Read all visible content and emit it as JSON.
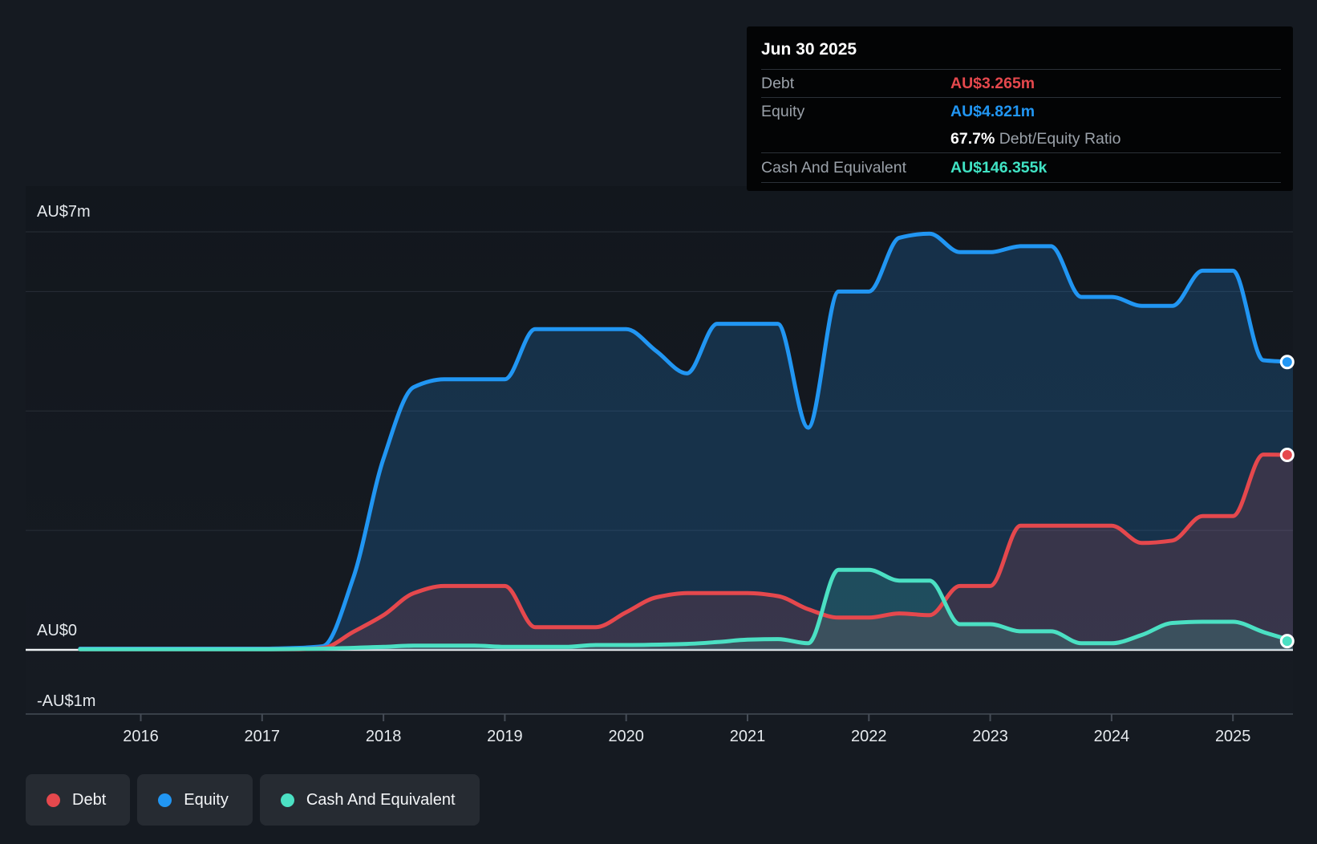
{
  "tooltip": {
    "date": "Jun 30 2025",
    "debt": {
      "label": "Debt",
      "value": "AU$3.265m",
      "color": "#e5484d"
    },
    "equity": {
      "label": "Equity",
      "value": "AU$4.821m",
      "color": "#2196f3"
    },
    "ratio": {
      "value": "67.7%",
      "label": "Debt/Equity Ratio"
    },
    "cash": {
      "label": "Cash And Equivalent",
      "value": "AU$146.355k",
      "color": "#40e3c4"
    }
  },
  "legend": {
    "items": [
      {
        "label": "Debt",
        "color": "#e5484d"
      },
      {
        "label": "Equity",
        "color": "#2196f3"
      },
      {
        "label": "Cash And Equivalent",
        "color": "#4be0c3"
      }
    ]
  },
  "axis": {
    "y_top_label": "AU$7m",
    "y_zero_label": "AU$0",
    "y_bottom_label": "-AU$1m",
    "x_tick_years": [
      2016,
      2017,
      2018,
      2019,
      2020,
      2021,
      2022,
      2023,
      2024,
      2025
    ]
  },
  "chart_data": {
    "type": "area",
    "title": "Debt to Equity History (AU$ millions)",
    "x_unit": "decimal_year",
    "x_range": [
      2015.45,
      2025.55
    ],
    "y_unit": "AU$m",
    "y_gridline_values": [
      7,
      6,
      4,
      2
    ],
    "y_zero_value": 0,
    "y_bottom_value": -1,
    "grid_on": true,
    "legend_position": "bottom-left",
    "last_point_date": "Jun 30 2025",
    "series": [
      {
        "name": "Equity",
        "color": "#2196f3",
        "fill": "rgba(33,150,243,0.20)",
        "points": [
          [
            2015.5,
            0.02
          ],
          [
            2016,
            0.02
          ],
          [
            2016.5,
            0.02
          ],
          [
            2017,
            0.02
          ],
          [
            2017.25,
            0.03
          ],
          [
            2017.5,
            0.06
          ],
          [
            2017.75,
            1.2
          ],
          [
            2018,
            3.2
          ],
          [
            2018.25,
            4.4
          ],
          [
            2018.5,
            4.53
          ],
          [
            2019,
            4.53
          ],
          [
            2019.25,
            5.37
          ],
          [
            2020,
            5.37
          ],
          [
            2020.25,
            5.0
          ],
          [
            2020.5,
            4.63
          ],
          [
            2020.75,
            5.46
          ],
          [
            2021.25,
            5.46
          ],
          [
            2021.5,
            3.72
          ],
          [
            2021.75,
            6.0
          ],
          [
            2022,
            6.0
          ],
          [
            2022.25,
            6.9
          ],
          [
            2022.5,
            6.97
          ],
          [
            2022.75,
            6.66
          ],
          [
            2023,
            6.66
          ],
          [
            2023.25,
            6.76
          ],
          [
            2023.5,
            6.76
          ],
          [
            2023.75,
            5.91
          ],
          [
            2024,
            5.91
          ],
          [
            2024.25,
            5.76
          ],
          [
            2024.5,
            5.76
          ],
          [
            2024.75,
            6.35
          ],
          [
            2025,
            6.35
          ],
          [
            2025.25,
            4.85
          ],
          [
            2025.5,
            4.821
          ]
        ]
      },
      {
        "name": "Debt",
        "color": "#e5484d",
        "fill": "rgba(229,72,77,0.16)",
        "points": [
          [
            2015.5,
            0.01
          ],
          [
            2016,
            0.01
          ],
          [
            2016.5,
            0.01
          ],
          [
            2017,
            0.01
          ],
          [
            2017.25,
            0.01
          ],
          [
            2017.5,
            0.03
          ],
          [
            2017.75,
            0.3
          ],
          [
            2018,
            0.58
          ],
          [
            2018.25,
            0.95
          ],
          [
            2018.5,
            1.07
          ],
          [
            2019,
            1.07
          ],
          [
            2019.25,
            0.38
          ],
          [
            2019.75,
            0.38
          ],
          [
            2020,
            0.63
          ],
          [
            2020.25,
            0.88
          ],
          [
            2020.5,
            0.95
          ],
          [
            2021,
            0.95
          ],
          [
            2021.25,
            0.9
          ],
          [
            2021.5,
            0.68
          ],
          [
            2021.75,
            0.54
          ],
          [
            2022,
            0.54
          ],
          [
            2022.25,
            0.61
          ],
          [
            2022.5,
            0.58
          ],
          [
            2022.75,
            1.07
          ],
          [
            2023,
            1.07
          ],
          [
            2023.25,
            2.08
          ],
          [
            2024,
            2.08
          ],
          [
            2024.25,
            1.79
          ],
          [
            2024.5,
            1.83
          ],
          [
            2024.75,
            2.24
          ],
          [
            2025,
            2.24
          ],
          [
            2025.25,
            3.27
          ],
          [
            2025.5,
            3.265
          ]
        ]
      },
      {
        "name": "Cash And Equivalent",
        "color": "#4be0c3",
        "fill": "rgba(75,224,195,0.16)",
        "points": [
          [
            2015.5,
            0.01
          ],
          [
            2016,
            0.01
          ],
          [
            2016.5,
            0.01
          ],
          [
            2017,
            0.01
          ],
          [
            2017.5,
            0.02
          ],
          [
            2018,
            0.05
          ],
          [
            2018.25,
            0.07
          ],
          [
            2018.75,
            0.07
          ],
          [
            2019,
            0.05
          ],
          [
            2019.5,
            0.05
          ],
          [
            2019.75,
            0.08
          ],
          [
            2020,
            0.08
          ],
          [
            2020.5,
            0.1
          ],
          [
            2020.75,
            0.13
          ],
          [
            2021,
            0.17
          ],
          [
            2021.25,
            0.18
          ],
          [
            2021.5,
            0.11
          ],
          [
            2021.75,
            1.34
          ],
          [
            2022,
            1.34
          ],
          [
            2022.25,
            1.16
          ],
          [
            2022.5,
            1.16
          ],
          [
            2022.75,
            0.43
          ],
          [
            2023,
            0.43
          ],
          [
            2023.25,
            0.31
          ],
          [
            2023.5,
            0.31
          ],
          [
            2023.75,
            0.11
          ],
          [
            2024,
            0.11
          ],
          [
            2024.25,
            0.25
          ],
          [
            2024.5,
            0.45
          ],
          [
            2024.75,
            0.47
          ],
          [
            2025,
            0.47
          ],
          [
            2025.25,
            0.3
          ],
          [
            2025.5,
            0.146
          ]
        ]
      }
    ]
  }
}
